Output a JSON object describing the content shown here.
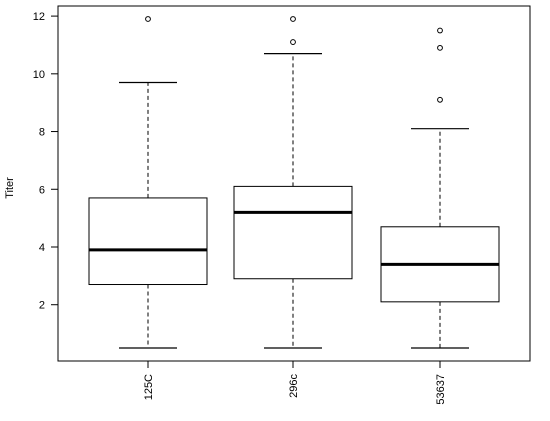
{
  "chart_data": {
    "type": "box",
    "title": "",
    "xlabel": "",
    "ylabel": "Titer",
    "categories": [
      "125C",
      "296c",
      "53637"
    ],
    "boxes": [
      {
        "name": "125C",
        "whisker_low": 0.5,
        "q1": 2.7,
        "median": 3.9,
        "q3": 5.7,
        "whisker_high": 9.7,
        "outliers": [
          11.9
        ]
      },
      {
        "name": "296c",
        "whisker_low": 0.5,
        "q1": 2.9,
        "median": 5.2,
        "q3": 6.1,
        "whisker_high": 10.7,
        "outliers": [
          11.1,
          11.9
        ]
      },
      {
        "name": "53637",
        "whisker_low": 0.5,
        "q1": 2.1,
        "median": 3.4,
        "q3": 4.7,
        "whisker_high": 8.1,
        "outliers": [
          9.1,
          10.9,
          11.5
        ]
      }
    ],
    "yticks": [
      "2",
      "4",
      "6",
      "8",
      "10",
      "12"
    ],
    "ylim": [
      0.05,
      12.35
    ],
    "grid": false,
    "legend": "none"
  }
}
